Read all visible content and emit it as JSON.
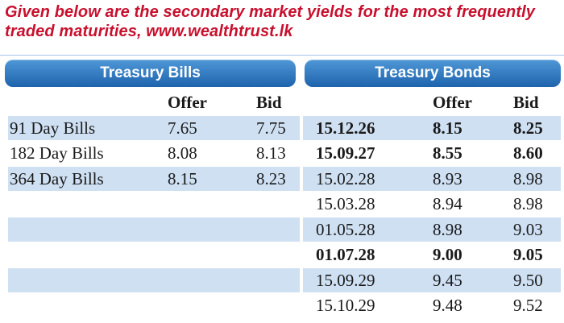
{
  "caption": {
    "line1": "Given below are the secondary market yields for the most frequently",
    "line2": "traded maturities, www.wealthtrust.lk"
  },
  "headers": {
    "bills": "Treasury Bills",
    "bonds": "Treasury Bonds"
  },
  "columns": {
    "bills_offer": "Offer",
    "bills_bid": "Bid",
    "bonds_offer": "Offer",
    "bonds_bid": "Bid"
  },
  "bills": [
    {
      "label": "91 Day Bills",
      "offer": "7.65",
      "bid": "7.75"
    },
    {
      "label": "182 Day Bills",
      "offer": "8.08",
      "bid": "8.13"
    },
    {
      "label": "364 Day Bills",
      "offer": "8.15",
      "bid": "8.23"
    }
  ],
  "bonds": [
    {
      "date": "15.12.26",
      "offer": "8.15",
      "bid": "8.25",
      "bold": true
    },
    {
      "date": "15.09.27",
      "offer": "8.55",
      "bid": "8.60",
      "bold": true
    },
    {
      "date": "15.02.28",
      "offer": "8.93",
      "bid": "8.98",
      "bold": false
    },
    {
      "date": "15.03.28",
      "offer": "8.94",
      "bid": "8.98",
      "bold": false
    },
    {
      "date": "01.05.28",
      "offer": "8.98",
      "bid": "9.03",
      "bold": false
    },
    {
      "date": "01.07.28",
      "offer": "9.00",
      "bid": "9.05",
      "bold": true
    },
    {
      "date": "15.09.29",
      "offer": "9.45",
      "bid": "9.50",
      "bold": false
    },
    {
      "date": "15.10.29",
      "offer": "9.48",
      "bid": "9.52",
      "bold": false
    }
  ],
  "colors": {
    "caption": "#c8102e",
    "header_bar": "#1d63ad",
    "row_shade": "#cfe0f3"
  }
}
